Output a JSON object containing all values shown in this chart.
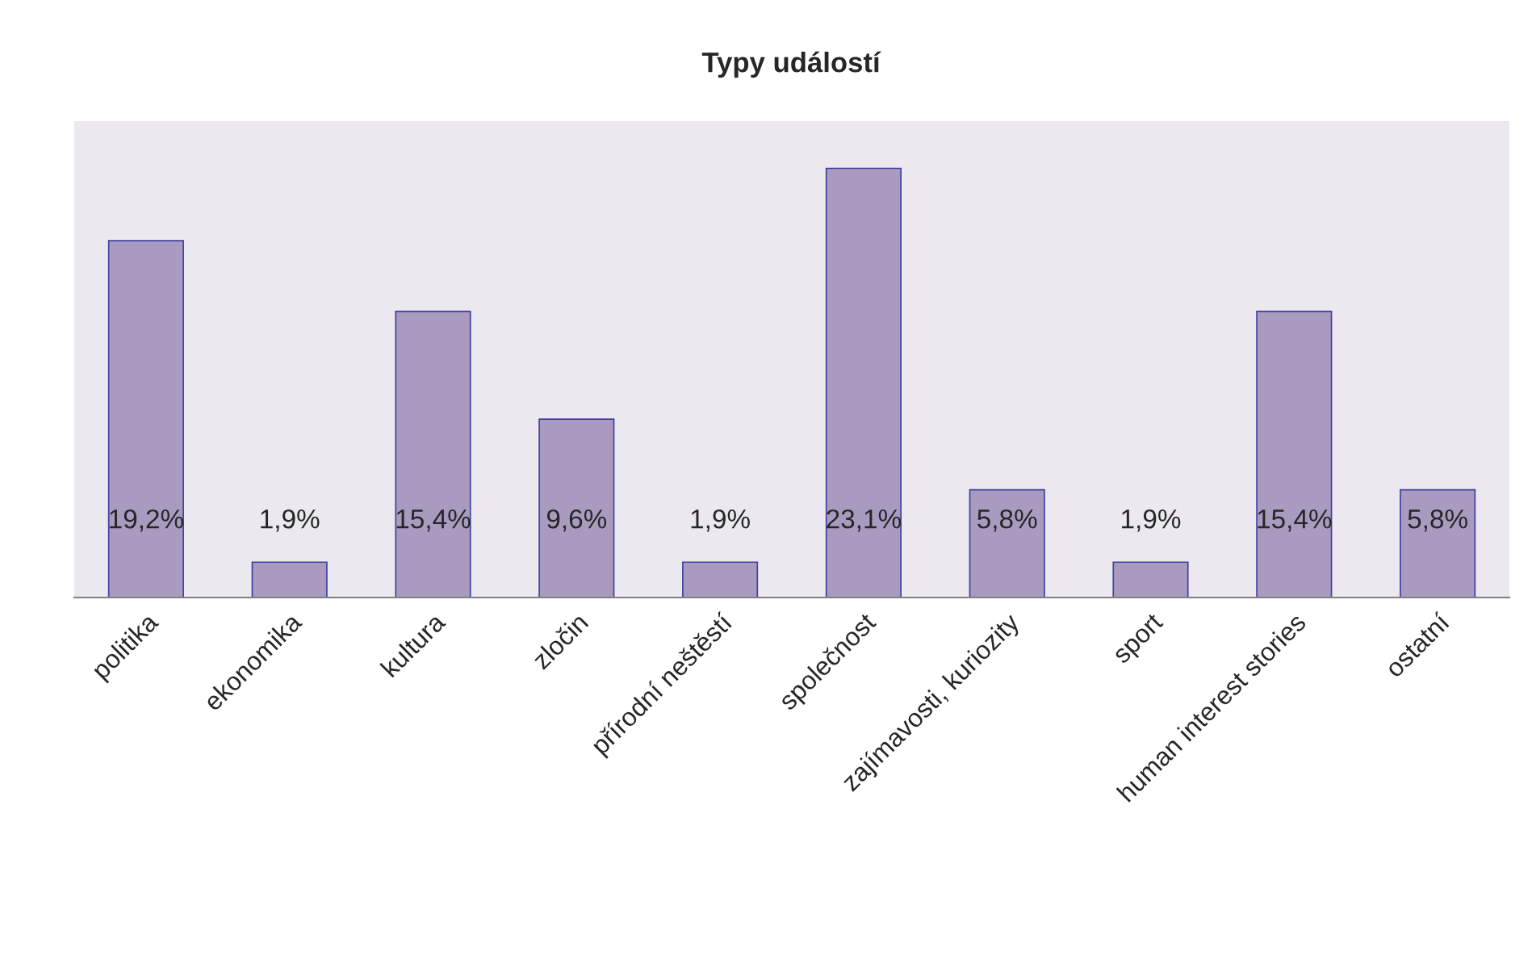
{
  "chart_data": {
    "type": "bar",
    "title": "Typy událostí",
    "categories": [
      "politika",
      "ekonomika",
      "kultura",
      "zločin",
      "přírodní neštěstí",
      "společnost",
      "zajímavosti, kuriozity",
      "sport",
      "human interest stories",
      "ostatní"
    ],
    "values": [
      19.2,
      1.9,
      15.4,
      9.6,
      1.9,
      23.1,
      5.8,
      1.9,
      15.4,
      5.8
    ],
    "value_labels": [
      "19,2%",
      "1,9%",
      "15,4%",
      "9,6%",
      "1,9%",
      "23,1%",
      "5,8%",
      "1,9%",
      "15,4%",
      "5,8%"
    ],
    "color": "#a99bc0",
    "grid": false,
    "legend": false
  }
}
